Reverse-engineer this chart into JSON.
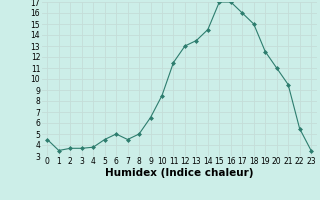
{
  "x": [
    0,
    1,
    2,
    3,
    4,
    5,
    6,
    7,
    8,
    9,
    10,
    11,
    12,
    13,
    14,
    15,
    16,
    17,
    18,
    19,
    20,
    21,
    22,
    23
  ],
  "y": [
    4.5,
    3.5,
    3.7,
    3.7,
    3.8,
    4.5,
    5.0,
    4.5,
    5.0,
    6.5,
    8.5,
    11.5,
    13.0,
    13.5,
    14.5,
    17.0,
    17.0,
    16.0,
    15.0,
    12.5,
    11.0,
    9.5,
    5.5,
    3.5
  ],
  "line_color": "#2d7d6e",
  "marker": "D",
  "markersize": 2.0,
  "bg_color": "#cceee8",
  "grid_color": "#c4ddd8",
  "xlabel": "Humidex (Indice chaleur)",
  "ylim": [
    3,
    17
  ],
  "xlim": [
    -0.5,
    23.5
  ],
  "yticks": [
    3,
    4,
    5,
    6,
    7,
    8,
    9,
    10,
    11,
    12,
    13,
    14,
    15,
    16,
    17
  ],
  "xticks": [
    0,
    1,
    2,
    3,
    4,
    5,
    6,
    7,
    8,
    9,
    10,
    11,
    12,
    13,
    14,
    15,
    16,
    17,
    18,
    19,
    20,
    21,
    22,
    23
  ],
  "tick_label_fontsize": 5.5,
  "xlabel_fontsize": 7.5
}
